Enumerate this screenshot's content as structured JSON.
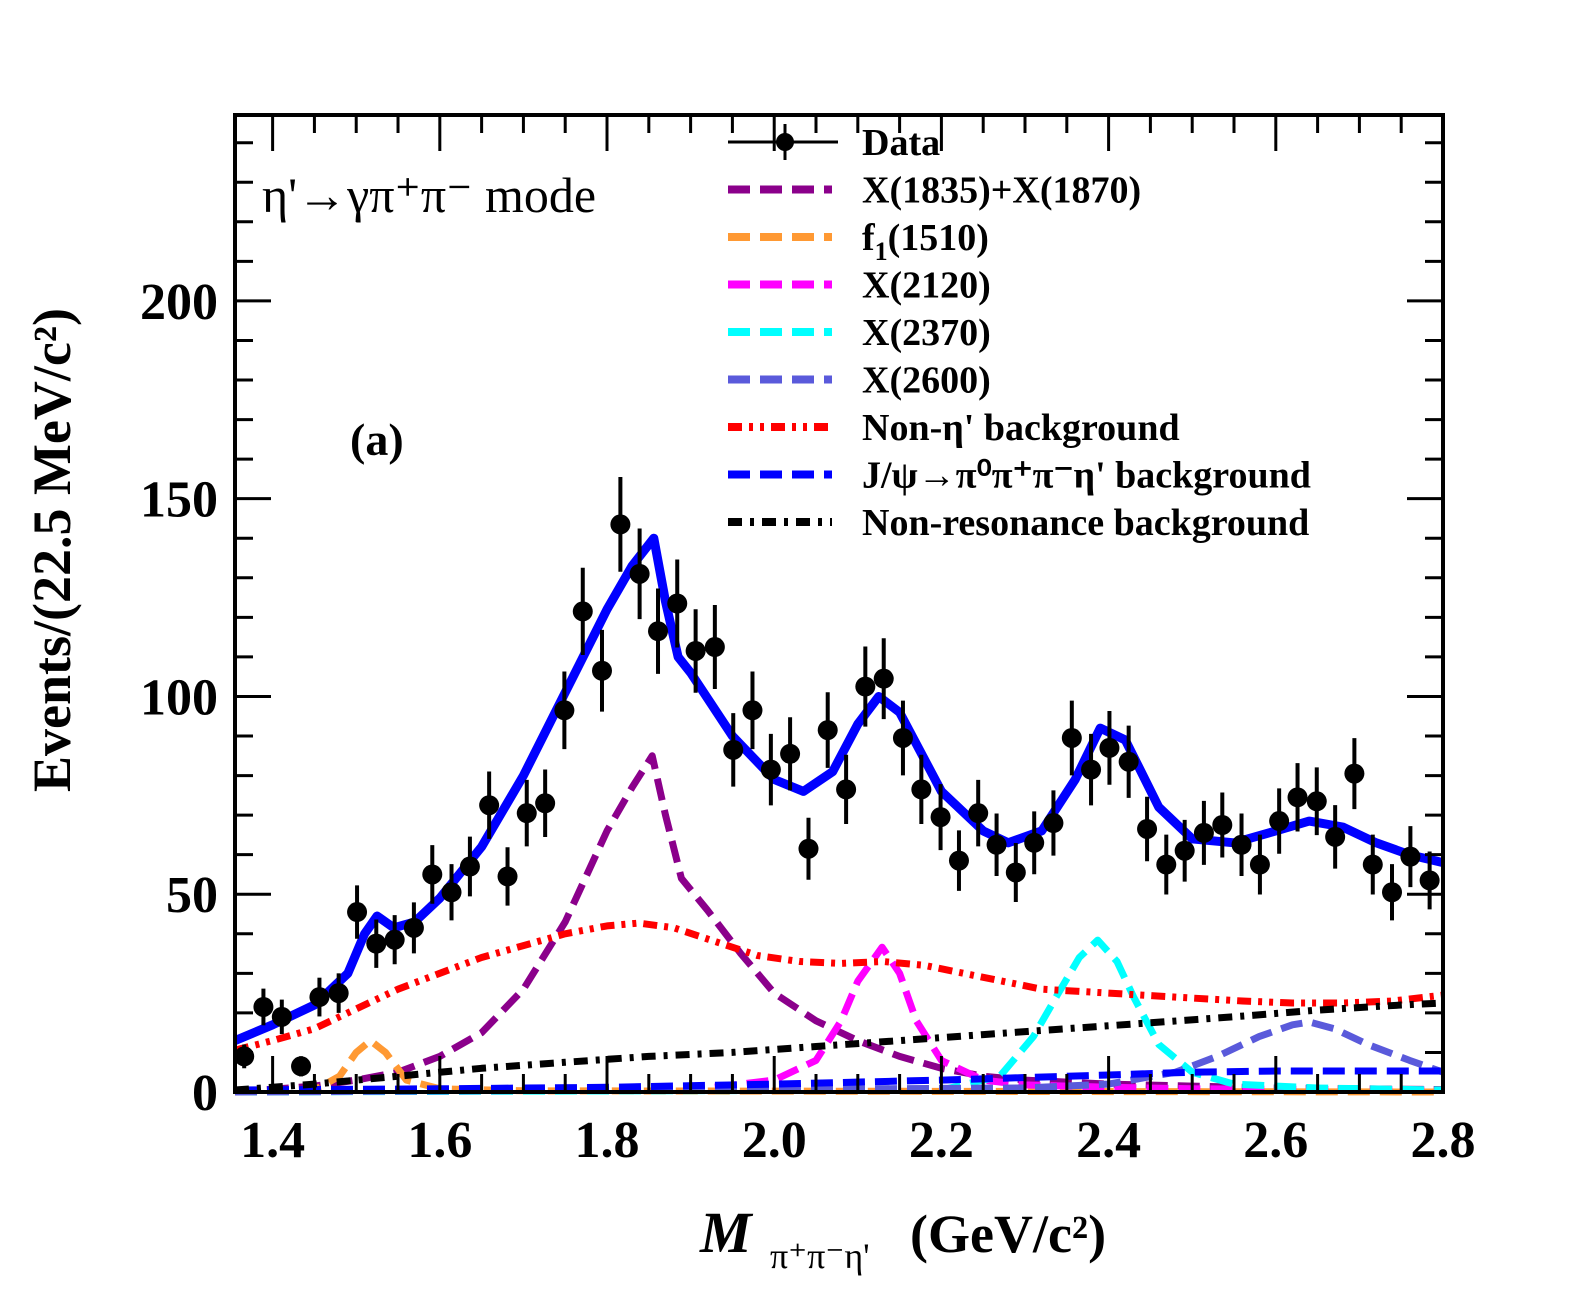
{
  "chart_data": {
    "type": "scatter",
    "title": "",
    "xlabel": "M",
    "xlabel_sub": "π⁺π⁻η'",
    "xlabel_unit": "(GeV/c²)",
    "ylabel": "Events/(22.5 MeV/c²)",
    "xlim": [
      1.355,
      2.8
    ],
    "ylim": [
      0,
      247
    ],
    "x_ticks": [
      1.4,
      1.6,
      1.8,
      2.0,
      2.2,
      2.4,
      2.6,
      2.8
    ],
    "x_tick_labels": [
      "1.4",
      "1.6",
      "1.8",
      "2.0",
      "2.2",
      "2.4",
      "2.6",
      "2.8"
    ],
    "y_ticks": [
      0,
      50,
      100,
      150,
      200
    ],
    "y_tick_labels": [
      "0",
      "50",
      "100",
      "150",
      "200"
    ],
    "grid": false,
    "legend_position": "top-right",
    "annotations": {
      "mode": "η'→γπ⁺π⁻ mode",
      "panel": "(a)"
    },
    "data_points": {
      "name": "Data",
      "x": [
        1.366,
        1.389,
        1.411,
        1.434,
        1.456,
        1.479,
        1.501,
        1.524,
        1.546,
        1.569,
        1.591,
        1.614,
        1.636,
        1.659,
        1.681,
        1.704,
        1.726,
        1.749,
        1.771,
        1.794,
        1.816,
        1.839,
        1.861,
        1.884,
        1.906,
        1.929,
        1.951,
        1.974,
        1.996,
        2.019,
        2.041,
        2.064,
        2.086,
        2.109,
        2.131,
        2.154,
        2.176,
        2.199,
        2.221,
        2.244,
        2.266,
        2.289,
        2.311,
        2.334,
        2.356,
        2.379,
        2.401,
        2.424,
        2.446,
        2.469,
        2.491,
        2.514,
        2.536,
        2.559,
        2.581,
        2.604,
        2.626,
        2.649,
        2.671,
        2.694,
        2.716,
        2.739,
        2.761,
        2.784
      ],
      "y": [
        9,
        21.5,
        19,
        6.5,
        24,
        25,
        45.5,
        37.5,
        38.5,
        41.5,
        55,
        50.5,
        57,
        72.5,
        54.5,
        70.5,
        73,
        96.5,
        121.5,
        106.5,
        143.5,
        131,
        116.5,
        123.5,
        111.5,
        112.5,
        86.5,
        96.5,
        81.5,
        85.5,
        61.5,
        91.5,
        76.5,
        102.5,
        104.5,
        89.5,
        76.5,
        69.5,
        58.5,
        70.5,
        62.5,
        55.5,
        63,
        68,
        89.5,
        81.5,
        87,
        83.5,
        66.5,
        57.5,
        61,
        65.5,
        67.5,
        62.5,
        57.5,
        68.5,
        74.5,
        73.5,
        64.5,
        80.5,
        57.5,
        50.5,
        59.5,
        53.5
      ]
    },
    "series": [
      {
        "name": "Total fit",
        "color": "#0000ff",
        "style": "solid",
        "x": [
          1.355,
          1.4,
          1.45,
          1.49,
          1.51,
          1.525,
          1.545,
          1.57,
          1.6,
          1.65,
          1.7,
          1.75,
          1.8,
          1.83,
          1.856,
          1.87,
          1.885,
          1.9,
          1.95,
          2.0,
          2.035,
          2.07,
          2.1,
          2.125,
          2.15,
          2.2,
          2.25,
          2.28,
          2.32,
          2.36,
          2.39,
          2.42,
          2.46,
          2.5,
          2.55,
          2.6,
          2.64,
          2.68,
          2.72,
          2.76,
          2.8
        ],
        "y": [
          13,
          17,
          22,
          30,
          40,
          44.5,
          41.5,
          43,
          49,
          62,
          80,
          101,
          122,
          133,
          140,
          124,
          110,
          106,
          90,
          79,
          76,
          81,
          93,
          100,
          96,
          76,
          66,
          63,
          66,
          79,
          92,
          89,
          72,
          64,
          63,
          66,
          68.5,
          67,
          63,
          60,
          58
        ]
      },
      {
        "name": "X(1835)+X(1870)",
        "color": "#8b008b",
        "style": "dashed",
        "x": [
          1.355,
          1.45,
          1.5,
          1.55,
          1.6,
          1.65,
          1.7,
          1.75,
          1.8,
          1.83,
          1.854,
          1.87,
          1.889,
          1.92,
          1.96,
          2.0,
          2.05,
          2.1,
          2.15,
          2.2,
          2.25,
          2.3,
          2.4,
          2.5,
          2.6,
          2.7,
          2.8
        ],
        "y": [
          0,
          1.5,
          3,
          5,
          9,
          15,
          26,
          43,
          66,
          77,
          85,
          70,
          54,
          46,
          35,
          25,
          18,
          13,
          9,
          6,
          4,
          3,
          2,
          1.5,
          1,
          0.8,
          0.6
        ]
      },
      {
        "name": "f1(1510)",
        "color": "#ff9933",
        "style": "dashed",
        "x": [
          1.355,
          1.45,
          1.48,
          1.5,
          1.517,
          1.535,
          1.56,
          1.6,
          1.7,
          2.8
        ],
        "y": [
          0,
          0.5,
          4,
          10,
          13,
          10,
          3,
          0.8,
          0.3,
          0
        ]
      },
      {
        "name": "X(2120)",
        "color": "#ff00ff",
        "style": "dashed",
        "x": [
          1.355,
          1.9,
          2.0,
          2.05,
          2.08,
          2.1,
          2.129,
          2.15,
          2.17,
          2.2,
          2.25,
          2.3,
          2.4,
          2.5,
          2.8
        ],
        "y": [
          0,
          0.5,
          3,
          8,
          18,
          28,
          36.6,
          30,
          18,
          8,
          3,
          1.8,
          1.2,
          0.8,
          0.5
        ]
      },
      {
        "name": "X(2370)",
        "color": "#00ffff",
        "style": "dashed",
        "x": [
          1.355,
          2.2,
          2.27,
          2.31,
          2.34,
          2.365,
          2.387,
          2.41,
          2.43,
          2.46,
          2.5,
          2.55,
          2.65,
          2.8
        ],
        "y": [
          0,
          0.5,
          4,
          14,
          25,
          34,
          38.4,
          33,
          24,
          12,
          5,
          2,
          1,
          0.5
        ]
      },
      {
        "name": "X(2600)",
        "color": "#5a5adb",
        "style": "dashed",
        "x": [
          1.355,
          2.3,
          2.4,
          2.48,
          2.53,
          2.58,
          2.62,
          2.64,
          2.67,
          2.71,
          2.76,
          2.8
        ],
        "y": [
          0,
          1,
          2,
          5,
          9,
          14,
          17,
          17.7,
          16,
          12,
          8,
          5
        ]
      },
      {
        "name": "Non-η' background",
        "color": "#ff0000",
        "style": "dash-dot-dot",
        "x": [
          1.355,
          1.4,
          1.45,
          1.5,
          1.55,
          1.6,
          1.65,
          1.7,
          1.75,
          1.8,
          1.838,
          1.88,
          1.93,
          1.98,
          2.03,
          2.08,
          2.13,
          2.18,
          2.25,
          2.32,
          2.4,
          2.48,
          2.56,
          2.62,
          2.68,
          2.74,
          2.8
        ],
        "y": [
          10.6,
          13,
          16,
          21,
          26,
          30,
          34,
          37,
          40,
          42,
          42.7,
          41.5,
          38,
          34.5,
          33,
          32.5,
          33,
          32,
          29,
          26,
          25,
          24,
          23,
          22.5,
          22.5,
          23,
          24.5
        ]
      },
      {
        "name": "J/ψ→π⁰π⁺π⁻η' background",
        "color": "#0000ff",
        "style": "dashed",
        "x": [
          1.355,
          1.6,
          1.8,
          2.0,
          2.2,
          2.4,
          2.5,
          2.6,
          2.8
        ],
        "y": [
          0.5,
          0.8,
          1.2,
          2,
          3,
          4.3,
          5,
          5.3,
          5.3
        ]
      },
      {
        "name": "Non-resonance background",
        "color": "#000000",
        "style": "dash-dot",
        "x": [
          1.355,
          1.45,
          1.55,
          1.65,
          1.75,
          1.85,
          1.95,
          2.05,
          2.15,
          2.25,
          2.35,
          2.45,
          2.55,
          2.65,
          2.75,
          2.8
        ],
        "y": [
          0.5,
          2,
          4,
          6,
          7.5,
          9,
          10,
          11.5,
          13,
          14.5,
          16,
          17.5,
          19,
          20.7,
          22,
          22.5
        ]
      }
    ],
    "legend": [
      {
        "label": "Data",
        "marker": "point-errorbar",
        "color": "#000000"
      },
      {
        "label": "X(1835)+X(1870)",
        "color": "#8b008b",
        "style": "dashed"
      },
      {
        "label": "f1(1510)",
        "label_main": "f",
        "label_sub": "1",
        "label_rest": "(1510)",
        "color": "#ff9933",
        "style": "dashed"
      },
      {
        "label": "X(2120)",
        "color": "#ff00ff",
        "style": "dashed"
      },
      {
        "label": "X(2370)",
        "color": "#00ffff",
        "style": "dashed"
      },
      {
        "label": "X(2600)",
        "color": "#5a5adb",
        "style": "dashed"
      },
      {
        "label": "Non-η' background",
        "color": "#ff0000",
        "style": "dash-dot-dot"
      },
      {
        "label": "J/ψ→π⁰π⁺π⁻η' background",
        "color": "#0000ff",
        "style": "dashed"
      },
      {
        "label": "Non-resonance background",
        "color": "#000000",
        "style": "dash-dot"
      }
    ]
  },
  "labels": {
    "ylabel": "Events/(22.5 MeV/c²)",
    "xlabel_M": "M",
    "xlabel_sub": "π⁺π⁻η'",
    "xlabel_unit": "(GeV/c²)",
    "mode": "η'→γπ⁺π⁻ mode",
    "panel": "(a)"
  }
}
